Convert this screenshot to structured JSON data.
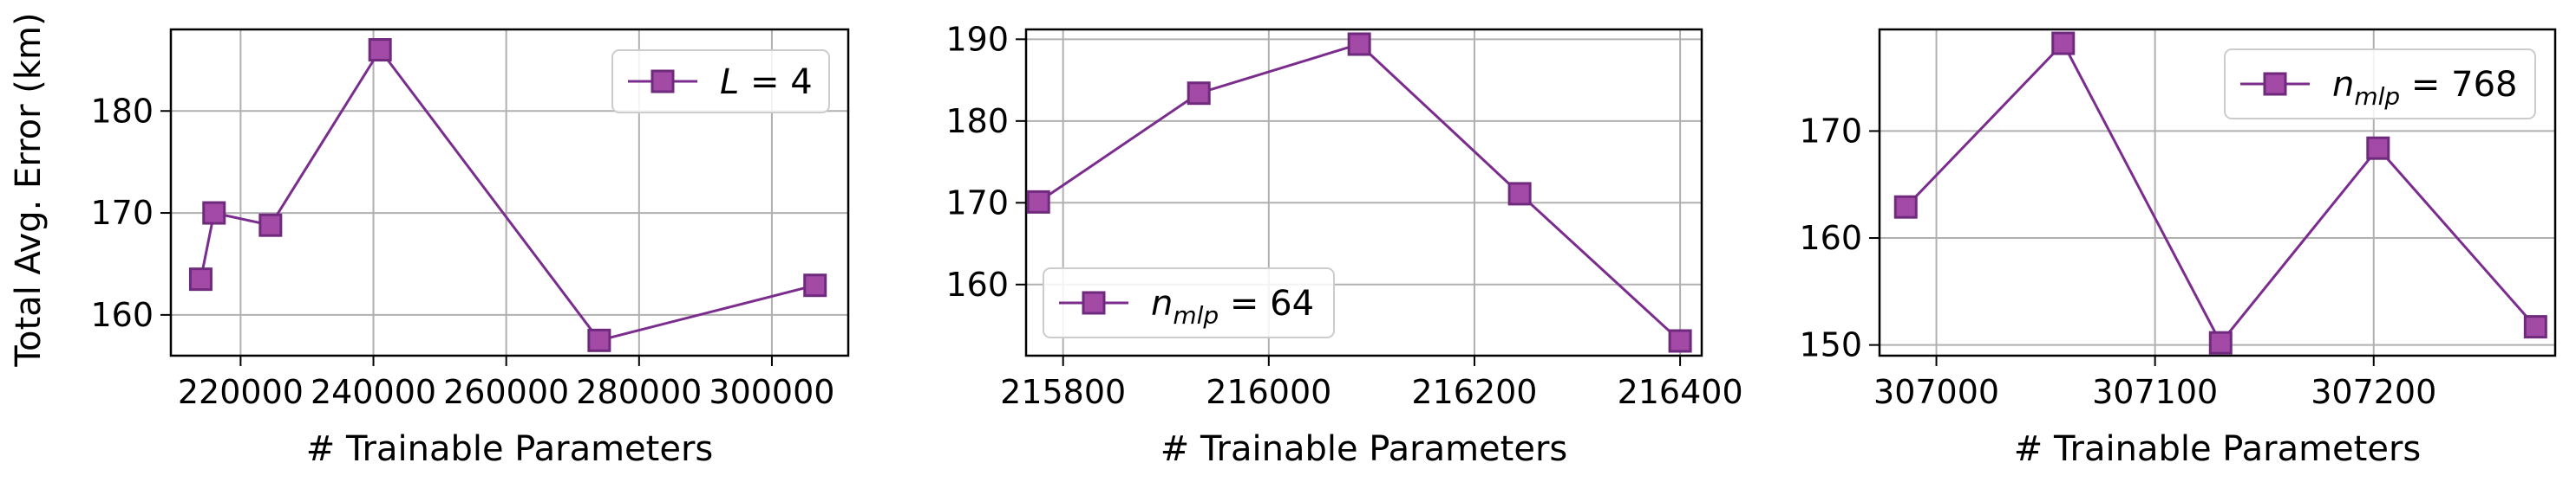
{
  "figure": {
    "shared_ylabel": "Total Avg. Error (km)",
    "line_color": "#7b2d8e",
    "marker_fill": "#a24aa6",
    "marker_edge": "#6f2a7e",
    "grid_color": "#b0b0b0"
  },
  "chart_data": [
    {
      "type": "line",
      "xlabel": "# Trainable Parameters",
      "ylabel": "Total Avg. Error (km)",
      "xlim": [
        209500,
        311500
      ],
      "ylim": [
        156,
        188
      ],
      "xticks": [
        220000,
        240000,
        260000,
        280000,
        300000
      ],
      "xtick_labels": [
        "220000",
        "240000",
        "260000",
        "280000",
        "300000"
      ],
      "yticks": [
        160,
        170,
        180
      ],
      "ytick_labels": [
        "160",
        "170",
        "180"
      ],
      "grid": true,
      "legend_position": "upper-right",
      "series": [
        {
          "name": "L = 4",
          "legend_main": "L",
          "legend_sub": "",
          "legend_rest": " = 4",
          "marker": "square",
          "x": [
            214000,
            216000,
            224500,
            241000,
            274000,
            306500
          ],
          "y": [
            163.5,
            170.0,
            168.8,
            186.0,
            157.5,
            162.9
          ]
        }
      ]
    },
    {
      "type": "line",
      "xlabel": "# Trainable Parameters",
      "ylabel": "",
      "xlim": [
        215764,
        216421
      ],
      "ylim": [
        151.3,
        191.2
      ],
      "xticks": [
        215800,
        216000,
        216200,
        216400
      ],
      "xtick_labels": [
        "215800",
        "216000",
        "216200",
        "216400"
      ],
      "yticks": [
        160,
        170,
        180,
        190
      ],
      "ytick_labels": [
        "160",
        "170",
        "180",
        "190"
      ],
      "grid": true,
      "legend_position": "lower-left",
      "series": [
        {
          "name": "n_mlp = 64",
          "legend_main": "n",
          "legend_sub": "mlp",
          "legend_rest": " = 64",
          "marker": "square",
          "x": [
            215776,
            215932,
            216088,
            216244,
            216400
          ],
          "y": [
            170.1,
            183.4,
            189.4,
            171.1,
            153.1
          ]
        }
      ]
    },
    {
      "type": "line",
      "xlabel": "# Trainable Parameters",
      "ylabel": "",
      "xlim": [
        306974,
        307283
      ],
      "ylim": [
        149,
        179.5
      ],
      "xticks": [
        307000,
        307100,
        307200
      ],
      "xtick_labels": [
        "307000",
        "307100",
        "307200"
      ],
      "yticks": [
        150,
        160,
        170
      ],
      "ytick_labels": [
        "150",
        "160",
        "170"
      ],
      "grid": true,
      "legend_position": "upper-right",
      "series": [
        {
          "name": "n_mlp = 768",
          "legend_main": "n",
          "legend_sub": "mlp",
          "legend_rest": " = 768",
          "marker": "square",
          "x": [
            306986,
            307058,
            307130,
            307202,
            307274
          ],
          "y": [
            162.9,
            178.2,
            150.2,
            168.4,
            151.7
          ]
        }
      ]
    }
  ]
}
